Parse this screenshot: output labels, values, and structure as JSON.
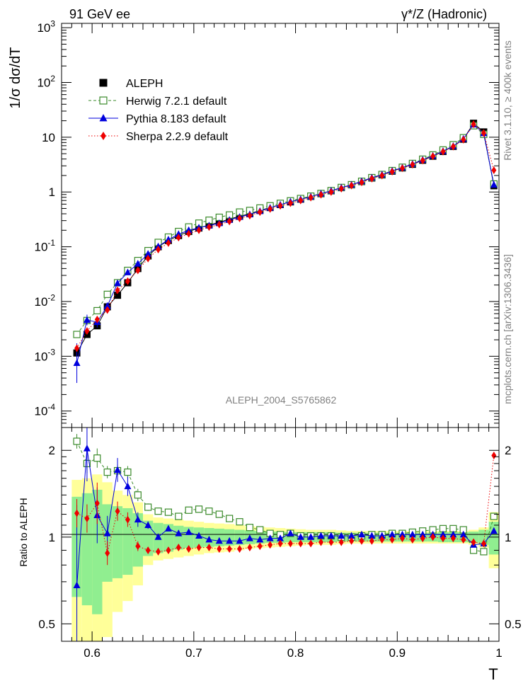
{
  "header": {
    "left_title": "91 GeV ee",
    "right_title": "γ*/Z (Hadronic)",
    "analysis_label": "ALEPH_2004_S5765862",
    "side_note_top": "Rivet 3.1.10, ≥ 400k events",
    "side_note_bottom": "mcplots.cern.ch [arXiv:1306.3436]"
  },
  "colors": {
    "data": "#000000",
    "herwig": "#3a8a2a",
    "pythia": "#0000dd",
    "sherpa": "#ee0000",
    "band_inner": "#90ee90",
    "band_outer": "#ffff99"
  },
  "chart_data": [
    {
      "type": "line",
      "panel": "main",
      "ylabel": "1/σ  dσ/dT",
      "yscale": "log",
      "ylim": [
        5e-05,
        1200
      ],
      "xlim": [
        0.57,
        1.0
      ],
      "y_tick_labels": [
        "10^-4",
        "10^-3",
        "10^-2",
        "10^-1",
        "1",
        "10",
        "10^2",
        "10^3"
      ],
      "legend": [
        "ALEPH",
        "Herwig 7.2.1 default",
        "Pythia 8.183 default",
        "Sherpa 2.2.9 default"
      ],
      "legend_position": "top-left",
      "x": [
        0.585,
        0.595,
        0.605,
        0.615,
        0.625,
        0.635,
        0.645,
        0.655,
        0.665,
        0.675,
        0.685,
        0.695,
        0.705,
        0.715,
        0.725,
        0.735,
        0.745,
        0.755,
        0.765,
        0.775,
        0.785,
        0.795,
        0.805,
        0.815,
        0.825,
        0.835,
        0.845,
        0.855,
        0.865,
        0.875,
        0.885,
        0.895,
        0.905,
        0.915,
        0.925,
        0.935,
        0.945,
        0.955,
        0.965,
        0.975,
        0.985,
        0.995
      ],
      "series": [
        {
          "name": "ALEPH",
          "values": [
            0.00115,
            0.0025,
            0.0036,
            0.008,
            0.013,
            0.022,
            0.04,
            0.068,
            0.1,
            0.13,
            0.16,
            0.19,
            0.22,
            0.25,
            0.28,
            0.32,
            0.36,
            0.4,
            0.46,
            0.52,
            0.59,
            0.66,
            0.74,
            0.83,
            0.93,
            1.05,
            1.2,
            1.35,
            1.55,
            1.8,
            2.05,
            2.4,
            2.75,
            3.2,
            3.8,
            4.5,
            5.5,
            6.8,
            9.2,
            18.0,
            12.5,
            1.3
          ]
        },
        {
          "name": "Herwig 7.2.1 default",
          "values": [
            0.0025,
            0.0045,
            0.0068,
            0.0135,
            0.022,
            0.037,
            0.056,
            0.085,
            0.12,
            0.15,
            0.19,
            0.23,
            0.27,
            0.305,
            0.345,
            0.38,
            0.43,
            0.46,
            0.51,
            0.56,
            0.62,
            0.69,
            0.76,
            0.84,
            0.94,
            1.06,
            1.21,
            1.36,
            1.57,
            1.83,
            2.09,
            2.46,
            2.83,
            3.32,
            3.97,
            4.75,
            5.86,
            7.3,
            9.8,
            16.2,
            11.3,
            1.4
          ]
        },
        {
          "name": "Pythia 8.183 default",
          "values": [
            0.00075,
            0.0046,
            0.0042,
            0.0083,
            0.0215,
            0.034,
            0.049,
            0.074,
            0.101,
            0.135,
            0.17,
            0.2,
            0.222,
            0.243,
            0.268,
            0.307,
            0.349,
            0.39,
            0.448,
            0.513,
            0.585,
            0.663,
            0.733,
            0.822,
            0.93,
            1.05,
            1.2,
            1.35,
            1.57,
            1.82,
            2.07,
            2.43,
            2.78,
            3.25,
            3.85,
            4.58,
            5.58,
            6.9,
            9.3,
            17.0,
            11.8,
            1.35
          ]
        },
        {
          "name": "Sherpa 2.2.9 default",
          "values": [
            0.0014,
            0.0029,
            0.0047,
            0.007,
            0.016,
            0.0235,
            0.037,
            0.061,
            0.089,
            0.117,
            0.147,
            0.173,
            0.2,
            0.229,
            0.254,
            0.29,
            0.33,
            0.37,
            0.43,
            0.49,
            0.56,
            0.625,
            0.7,
            0.79,
            0.89,
            1.0,
            1.15,
            1.31,
            1.5,
            1.75,
            2.0,
            2.35,
            2.72,
            3.15,
            3.75,
            4.5,
            5.45,
            6.75,
            9.0,
            17.3,
            11.9,
            2.5
          ]
        }
      ]
    },
    {
      "type": "line",
      "panel": "ratio",
      "ylabel": "Ratio to ALEPH",
      "yscale": "log",
      "ylim": [
        0.435,
        2.4
      ],
      "y_tick_labels": [
        "0.5",
        "1",
        "2"
      ],
      "xlabel": "T",
      "x_tick_labels": [
        "0.6",
        "0.7",
        "0.8",
        "0.9",
        "1"
      ],
      "x_ticks": [
        0.6,
        0.7,
        0.8,
        0.9,
        1.0
      ],
      "x": [
        0.585,
        0.595,
        0.605,
        0.615,
        0.625,
        0.635,
        0.645,
        0.655,
        0.665,
        0.675,
        0.685,
        0.695,
        0.705,
        0.715,
        0.725,
        0.735,
        0.745,
        0.755,
        0.765,
        0.775,
        0.785,
        0.795,
        0.805,
        0.815,
        0.825,
        0.835,
        0.845,
        0.855,
        0.865,
        0.875,
        0.885,
        0.895,
        0.905,
        0.915,
        0.925,
        0.935,
        0.945,
        0.955,
        0.965,
        0.975,
        0.985,
        0.995
      ],
      "bands": {
        "inner_half_width": [
          0.38,
          0.42,
          0.46,
          0.3,
          0.28,
          0.26,
          0.21,
          0.14,
          0.12,
          0.11,
          0.095,
          0.085,
          0.08,
          0.075,
          0.07,
          0.065,
          0.06,
          0.055,
          0.05,
          0.045,
          0.045,
          0.04,
          0.04,
          0.04,
          0.04,
          0.04,
          0.035,
          0.035,
          0.035,
          0.035,
          0.035,
          0.035,
          0.035,
          0.035,
          0.035,
          0.035,
          0.04,
          0.04,
          0.04,
          0.045,
          0.06,
          0.13
        ],
        "outer_half_width": [
          0.58,
          0.6,
          0.65,
          0.55,
          0.45,
          0.4,
          0.32,
          0.2,
          0.17,
          0.16,
          0.15,
          0.14,
          0.13,
          0.12,
          0.115,
          0.11,
          0.1,
          0.09,
          0.085,
          0.08,
          0.075,
          0.07,
          0.065,
          0.06,
          0.06,
          0.06,
          0.055,
          0.05,
          0.05,
          0.05,
          0.05,
          0.05,
          0.05,
          0.05,
          0.05,
          0.05,
          0.05,
          0.05,
          0.05,
          0.06,
          0.08,
          0.22
        ]
      },
      "series": [
        {
          "name": "Herwig 7.2.1 default",
          "values": [
            2.15,
            1.8,
            1.88,
            1.68,
            1.7,
            1.68,
            1.4,
            1.27,
            1.23,
            1.22,
            1.18,
            1.24,
            1.25,
            1.23,
            1.2,
            1.16,
            1.13,
            1.08,
            1.06,
            1.03,
            1.02,
            1.03,
            1.01,
            1.01,
            1.01,
            1.01,
            1.0,
            1.0,
            1.01,
            1.02,
            1.02,
            1.03,
            1.03,
            1.04,
            1.05,
            1.06,
            1.07,
            1.07,
            1.06,
            0.9,
            0.89,
            1.18
          ]
        },
        {
          "name": "Pythia 8.183 default",
          "values": [
            0.68,
            2.03,
            1.19,
            1.03,
            1.71,
            1.5,
            1.15,
            1.1,
            1.0,
            1.07,
            1.03,
            1.04,
            1.01,
            0.98,
            0.97,
            0.97,
            0.97,
            0.99,
            0.98,
            0.99,
            0.99,
            1.03,
            1.0,
            1.0,
            1.01,
            1.01,
            1.01,
            1.01,
            1.02,
            1.01,
            1.01,
            1.02,
            1.02,
            1.02,
            1.02,
            1.02,
            1.02,
            1.02,
            1.02,
            0.94,
            0.95,
            1.05
          ]
        },
        {
          "name": "Sherpa 2.2.9 default",
          "values": [
            1.21,
            1.16,
            1.31,
            0.88,
            1.23,
            1.15,
            0.93,
            0.9,
            0.89,
            0.9,
            0.92,
            0.91,
            0.92,
            0.92,
            0.91,
            0.91,
            0.91,
            0.92,
            0.93,
            0.94,
            0.95,
            0.95,
            0.95,
            0.95,
            0.96,
            0.96,
            0.96,
            0.97,
            0.97,
            0.97,
            0.98,
            0.98,
            0.99,
            0.98,
            0.99,
            1.0,
            0.99,
            0.99,
            0.98,
            0.96,
            0.95,
            1.92
          ]
        }
      ]
    }
  ]
}
